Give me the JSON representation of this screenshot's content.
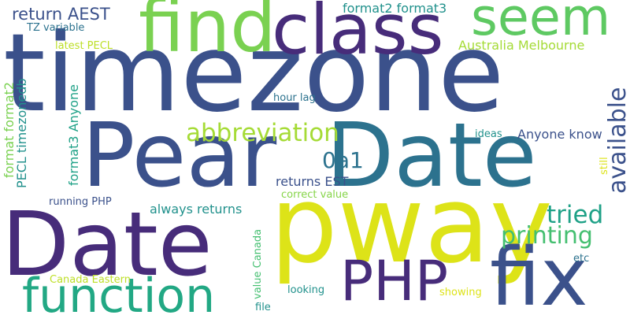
{
  "words": [
    {
      "text": "timezone",
      "color": "#3b518b"
    },
    {
      "text": "Pear",
      "color": "#3b518b"
    },
    {
      "text": "Date",
      "color": "#2c728e"
    },
    {
      "text": "Date",
      "color": "#472c7a"
    },
    {
      "text": "pway",
      "color": "#dde318"
    },
    {
      "text": "find",
      "color": "#7ad151"
    },
    {
      "text": "class",
      "color": "#472c7a"
    },
    {
      "text": "seem",
      "color": "#5ec962"
    },
    {
      "text": "fix",
      "color": "#3b518b"
    },
    {
      "text": "PHP",
      "color": "#472c7a"
    },
    {
      "text": "function",
      "color": "#22a884"
    },
    {
      "text": "abbreviation",
      "color": "#a5db36"
    },
    {
      "text": "available",
      "color": "#3b518b"
    },
    {
      "text": "tried",
      "color": "#1fa187"
    },
    {
      "text": "printing",
      "color": "#44bf70"
    },
    {
      "text": "0a1",
      "color": "#2c728e"
    },
    {
      "text": "return AEST",
      "color": "#3b518b"
    },
    {
      "text": "format2 format3",
      "color": "#21918c"
    },
    {
      "text": "TZ variable",
      "color": "#2c728e"
    },
    {
      "text": "latest PECL",
      "color": "#bddf26"
    },
    {
      "text": "Australia Melbourne",
      "color": "#a5db36"
    },
    {
      "text": "hour lag",
      "color": "#2c728e"
    },
    {
      "text": "ideas",
      "color": "#21918c"
    },
    {
      "text": "Anyone know",
      "color": "#3b518b"
    },
    {
      "text": "returns EST",
      "color": "#3b518b"
    },
    {
      "text": "correct value",
      "color": "#86d549"
    },
    {
      "text": "running PHP",
      "color": "#3b518b"
    },
    {
      "text": "always returns",
      "color": "#21918c"
    },
    {
      "text": "etc",
      "color": "#2c728e"
    },
    {
      "text": "Canada Eastern",
      "color": "#bddf26"
    },
    {
      "text": "looking",
      "color": "#21918c"
    },
    {
      "text": "showing",
      "color": "#dde318"
    },
    {
      "text": "file",
      "color": "#21918c"
    },
    {
      "text": "format format2",
      "color": "#7ad151"
    },
    {
      "text": "PECL timezonedb",
      "color": "#21918c"
    },
    {
      "text": "format3 Anyone",
      "color": "#1fa187"
    },
    {
      "text": "value Canada",
      "color": "#44bf70"
    },
    {
      "text": "still",
      "color": "#dde318"
    }
  ]
}
